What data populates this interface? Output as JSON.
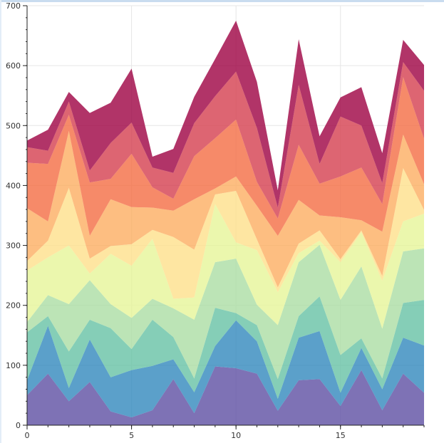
{
  "chart_data": {
    "type": "area",
    "stacked": true,
    "grid": true,
    "xlim": [
      0,
      19
    ],
    "ylim": [
      0,
      700
    ],
    "x_ticks": [
      0,
      5,
      10,
      15
    ],
    "y_ticks": [
      0,
      100,
      200,
      300,
      400,
      500,
      600,
      700
    ],
    "x": [
      0,
      1,
      2,
      3,
      4,
      5,
      6,
      7,
      8,
      9,
      10,
      11,
      12,
      13,
      14,
      15,
      16,
      17,
      18,
      19
    ],
    "series": [
      {
        "color": "#5e4fa2",
        "values": [
          50,
          86,
          40,
          72,
          23,
          13,
          25,
          77,
          20,
          98,
          95,
          86,
          24,
          75,
          77,
          32,
          92,
          25,
          86,
          54
        ]
      },
      {
        "color": "#3288bd",
        "values": [
          25,
          80,
          22,
          71,
          57,
          79,
          74,
          33,
          35,
          34,
          80,
          54,
          20,
          71,
          80,
          22,
          37,
          35,
          60,
          79
        ]
      },
      {
        "color": "#66c2a5",
        "values": [
          80,
          16,
          61,
          33,
          82,
          35,
          77,
          37,
          23,
          64,
          12,
          27,
          33,
          36,
          58,
          63,
          16,
          18,
          58,
          76
        ]
      },
      {
        "color": "#abdda4",
        "values": [
          17,
          35,
          79,
          66,
          40,
          52,
          35,
          48,
          98,
          76,
          91,
          34,
          90,
          90,
          86,
          92,
          120,
          83,
          86,
          86
        ]
      },
      {
        "color": "#e6f598",
        "values": [
          86,
          63,
          98,
          11,
          84,
          87,
          100,
          16,
          37,
          97,
          27,
          91,
          55,
          15,
          7,
          63,
          57,
          80,
          50,
          58
        ]
      },
      {
        "color": "#fee08b",
        "values": [
          16,
          28,
          96,
          25,
          13,
          36,
          15,
          103,
          80,
          16,
          86,
          18,
          8,
          16,
          17,
          5,
          3,
          8,
          89,
          6
        ]
      },
      {
        "color": "#fdae61",
        "values": [
          88,
          32,
          95,
          38,
          78,
          62,
          37,
          44,
          84,
          10,
          24,
          56,
          86,
          73,
          25,
          70,
          17,
          74,
          56,
          43
        ]
      },
      {
        "color": "#f46d43",
        "values": [
          76,
          96,
          27,
          89,
          34,
          89,
          34,
          20,
          72,
          84,
          95,
          40,
          29,
          92,
          53,
          68,
          88,
          46,
          96,
          76
        ]
      },
      {
        "color": "#d53e4f",
        "values": [
          26,
          22,
          22,
          20,
          60,
          52,
          33,
          43,
          55,
          70,
          80,
          90,
          18,
          100,
          33,
          100,
          70,
          35,
          25,
          80
        ]
      },
      {
        "color": "#9e0142",
        "values": [
          11,
          35,
          16,
          96,
          67,
          90,
          18,
          40,
          44,
          62,
          85,
          77,
          29,
          76,
          46,
          32,
          64,
          50,
          37,
          43
        ]
      }
    ]
  }
}
